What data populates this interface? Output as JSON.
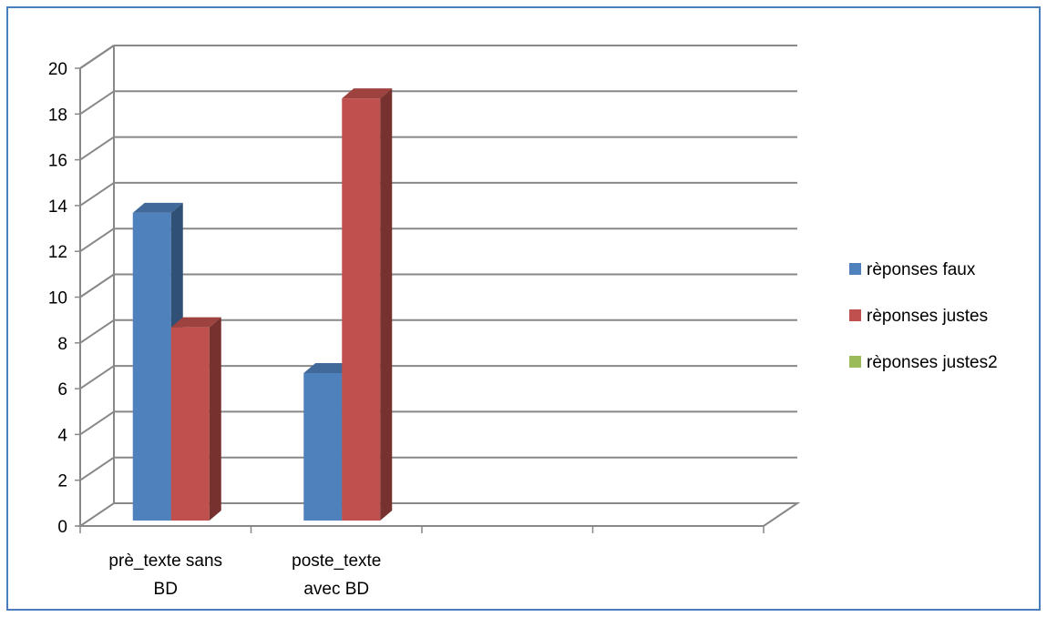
{
  "chart_data": {
    "type": "bar",
    "style": "3d-clustered-column",
    "categories": [
      [
        "prè_texte sans",
        "BD"
      ],
      [
        "poste_texte",
        "avec BD"
      ],
      [
        ""
      ],
      [
        ""
      ]
    ],
    "series": [
      {
        "name": "rèponses faux",
        "color": "#4F81BD",
        "values": [
          14,
          7,
          null,
          null
        ]
      },
      {
        "name": "rèponses justes",
        "color": "#C0504D",
        "values": [
          9,
          19,
          null,
          null
        ]
      },
      {
        "name": "rèponses justes2",
        "color": "#9BBB59",
        "values": [
          null,
          null,
          null,
          null
        ]
      }
    ],
    "ylim": [
      0,
      20
    ],
    "yticks": [
      "0",
      "2",
      "4",
      "6",
      "8",
      "10",
      "12",
      "14",
      "16",
      "18",
      "20"
    ],
    "grid": true,
    "legend_position": "right",
    "title": "",
    "xlabel": "",
    "ylabel": ""
  },
  "colors": {
    "frame_border": "#4A7EBB",
    "gridline": "#888888"
  }
}
